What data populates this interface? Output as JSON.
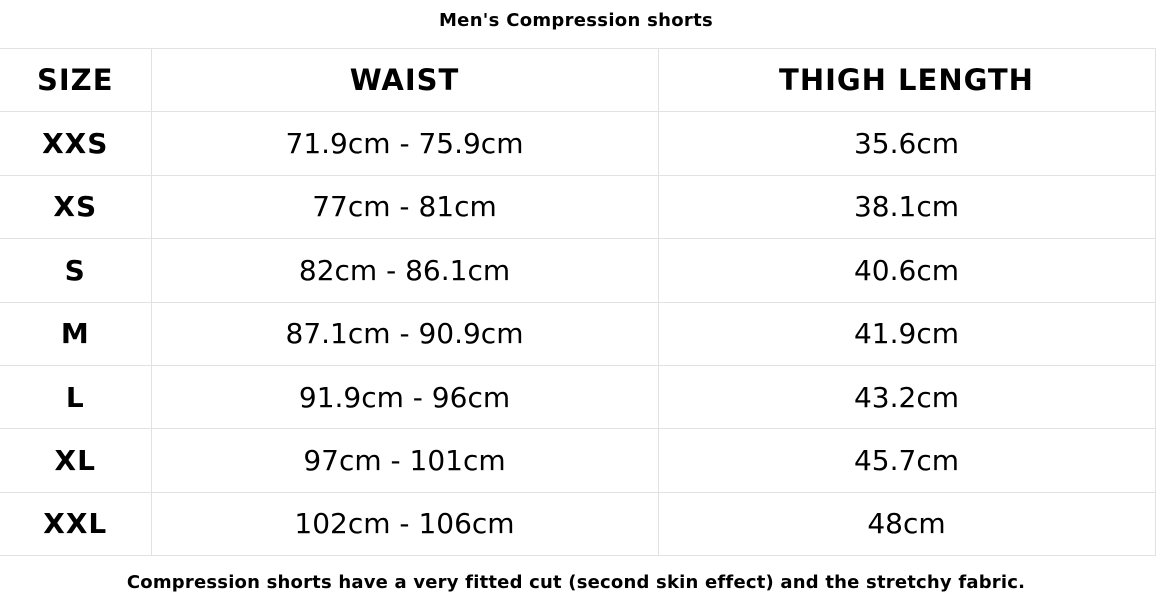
{
  "title": "Men's Compression shorts",
  "headers": [
    "SIZE",
    "WAIST",
    "THIGH LENGTH"
  ],
  "rows": [
    [
      "XXS",
      "71.9cm - 75.9cm",
      "35.6cm"
    ],
    [
      "XS",
      "77cm - 81cm",
      "38.1cm"
    ],
    [
      "S",
      "82cm - 86.1cm",
      "40.6cm"
    ],
    [
      "M",
      "87.1cm - 90.9cm",
      "41.9cm"
    ],
    [
      "L",
      "91.9cm - 96cm",
      "43.2cm"
    ],
    [
      "XL",
      "97cm - 101cm",
      "45.7cm"
    ],
    [
      "XXL",
      "102cm - 106cm",
      "48cm"
    ]
  ],
  "note": "Compression shorts have a very fitted cut (second skin effect) and the stretchy fabric."
}
